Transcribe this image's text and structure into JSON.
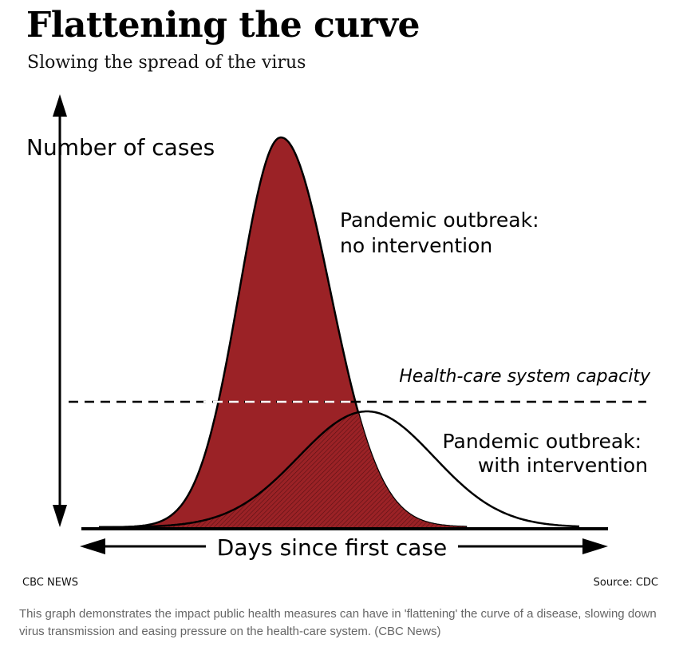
{
  "figure": {
    "title": "Flattening the curve",
    "subtitle": "Slowing the spread of the virus",
    "credit": "CBC NEWS",
    "source": "Source: CDC"
  },
  "caption": "This graph demonstrates the impact public health measures can have in 'flattening' the curve of a disease, slowing down virus transmission and easing pressure on the health-care system. (CBC News)",
  "colors": {
    "no_intervention_fill": "#9b2226",
    "with_intervention_fill": "#ffffff",
    "capacity_line": "#000000",
    "caption_text": "#666666"
  },
  "chart_data": {
    "type": "area",
    "xlabel": "Days since first case",
    "ylabel": "Number of cases",
    "series": [
      {
        "name": "Pandemic outbreak: no intervention",
        "label_lines": [
          "Pandemic outbreak:",
          "no intervention"
        ],
        "color": "#9b2226"
      },
      {
        "name": "Pandemic outbreak: with intervention",
        "label_lines": [
          "Pandemic outbreak:",
          "with intervention"
        ],
        "color": "#ffffff"
      }
    ],
    "reference_line": {
      "label": "Health-care system capacity",
      "style": "dashed"
    }
  }
}
